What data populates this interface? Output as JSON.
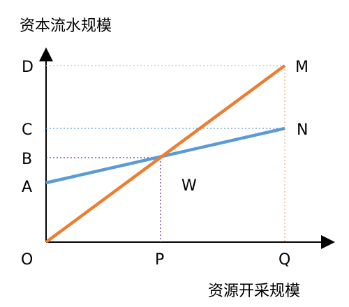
{
  "axes": {
    "y_title": "资本流水规模",
    "x_title": "资源开采规模"
  },
  "labels": {
    "origin": "O",
    "y_ticks": [
      "D",
      "C",
      "B",
      "A"
    ],
    "x_ticks": [
      "P",
      "Q"
    ],
    "lines": {
      "orange": "M",
      "blue": "N"
    },
    "region": "W"
  },
  "colors": {
    "orange_line": "#ed7d31",
    "blue_line": "#5b9bd5",
    "orange_guide": "#f4b183",
    "blue_guide": "#5b9bd5",
    "purple_guide": "#7030a0",
    "axis": "#000000"
  }
}
